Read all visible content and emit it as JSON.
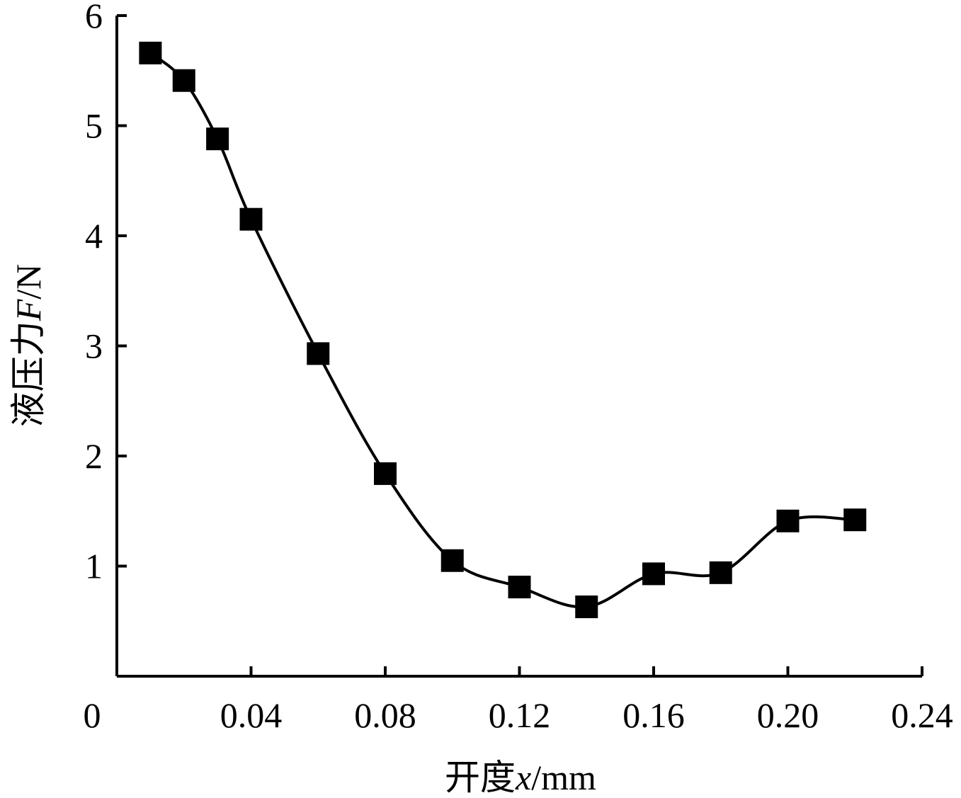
{
  "chart_data": {
    "type": "line",
    "title": "",
    "xlabel": {
      "prefix": "开度",
      "symbol": "x",
      "unit": "/mm"
    },
    "ylabel": {
      "prefix": "液压力",
      "symbol": "F",
      "unit": "/N"
    },
    "xlim": [
      0,
      0.24
    ],
    "ylim": [
      0,
      6
    ],
    "x_ticks": [
      {
        "value": 0,
        "label": "0"
      },
      {
        "value": 0.04,
        "label": "0.04"
      },
      {
        "value": 0.08,
        "label": "0.08"
      },
      {
        "value": 0.12,
        "label": "0.12"
      },
      {
        "value": 0.16,
        "label": "0.16"
      },
      {
        "value": 0.2,
        "label": "0.20"
      },
      {
        "value": 0.24,
        "label": "0.24"
      }
    ],
    "y_ticks": [
      {
        "value": 1,
        "label": "1"
      },
      {
        "value": 2,
        "label": "2"
      },
      {
        "value": 3,
        "label": "3"
      },
      {
        "value": 4,
        "label": "4"
      },
      {
        "value": 5,
        "label": "5"
      },
      {
        "value": 6,
        "label": "6"
      }
    ],
    "grid": false,
    "legend": "none",
    "marker": "square",
    "color": "#000000",
    "series": [
      {
        "x": [
          0.01,
          0.02,
          0.03,
          0.04,
          0.06,
          0.08,
          0.1,
          0.12,
          0.14,
          0.16,
          0.18,
          0.2,
          0.22
        ],
        "y": [
          5.66,
          5.41,
          4.88,
          4.15,
          2.93,
          1.84,
          1.05,
          0.81,
          0.63,
          0.93,
          0.94,
          1.41,
          1.42
        ]
      }
    ]
  }
}
